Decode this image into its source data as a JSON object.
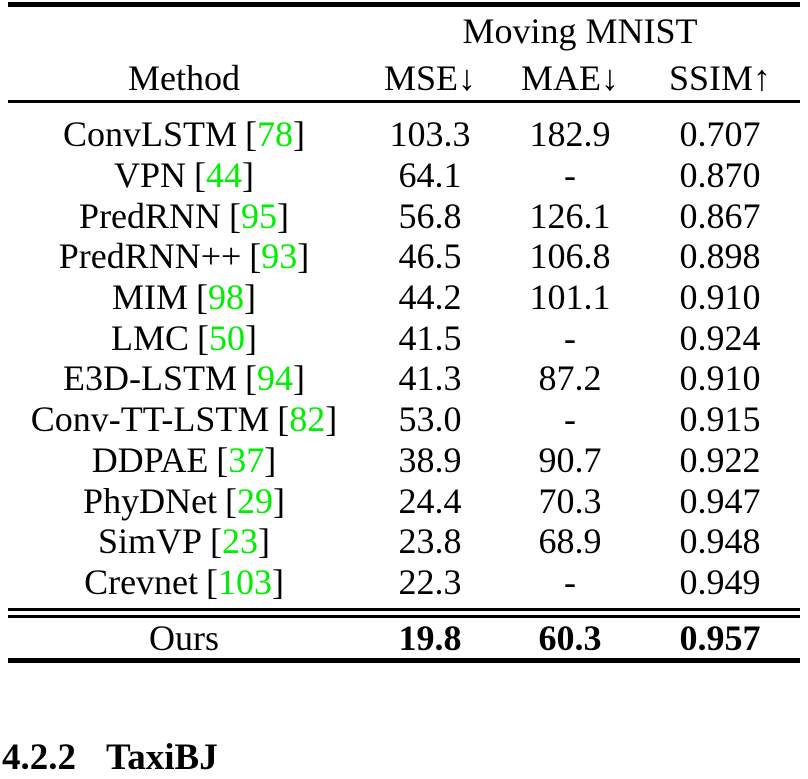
{
  "page": {
    "background": "#ffffff",
    "text_color": "#000000",
    "citation_color": "#00ee00"
  },
  "table": {
    "group_header": "Moving MNIST",
    "columns": {
      "method": "Method",
      "mse": "MSE↓",
      "mae": "MAE↓",
      "ssim": "SSIM↑"
    },
    "rows": [
      {
        "method": "ConvLSTM",
        "ref": "78",
        "mse": "103.3",
        "mae": "182.9",
        "ssim": "0.707"
      },
      {
        "method": "VPN",
        "ref": "44",
        "mse": "64.1",
        "mae": "-",
        "ssim": "0.870"
      },
      {
        "method": "PredRNN",
        "ref": "95",
        "mse": "56.8",
        "mae": "126.1",
        "ssim": "0.867"
      },
      {
        "method": "PredRNN++",
        "ref": "93",
        "mse": "46.5",
        "mae": "106.8",
        "ssim": "0.898"
      },
      {
        "method": "MIM",
        "ref": "98",
        "mse": "44.2",
        "mae": "101.1",
        "ssim": "0.910"
      },
      {
        "method": "LMC",
        "ref": "50",
        "mse": "41.5",
        "mae": "-",
        "ssim": "0.924"
      },
      {
        "method": "E3D-LSTM",
        "ref": "94",
        "mse": "41.3",
        "mae": "87.2",
        "ssim": "0.910"
      },
      {
        "method": "Conv-TT-LSTM",
        "ref": "82",
        "mse": "53.0",
        "mae": "-",
        "ssim": "0.915"
      },
      {
        "method": "DDPAE",
        "ref": "37",
        "mse": "38.9",
        "mae": "90.7",
        "ssim": "0.922"
      },
      {
        "method": "PhyDNet",
        "ref": "29",
        "mse": "24.4",
        "mae": "70.3",
        "ssim": "0.947"
      },
      {
        "method": "SimVP",
        "ref": "23",
        "mse": "23.8",
        "mae": "68.9",
        "ssim": "0.948"
      },
      {
        "method": "Crevnet",
        "ref": "103",
        "mse": "22.3",
        "mae": "-",
        "ssim": "0.949"
      }
    ],
    "ours_row": {
      "method": "Ours",
      "mse": "19.8",
      "mae": "60.3",
      "ssim": "0.957"
    }
  },
  "section": {
    "number": "4.2.2",
    "title": "TaxiBJ"
  }
}
